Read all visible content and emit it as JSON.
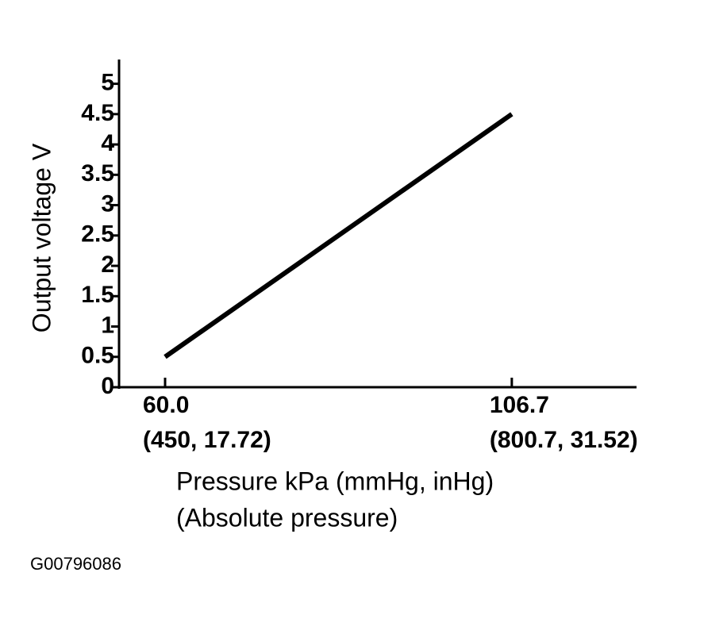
{
  "chart_data": {
    "type": "line",
    "ylabel": "Output voltage V",
    "xlabel": [
      "Pressure kPa (mmHg, inHg)",
      "(Absolute pressure)"
    ],
    "figure_id": "G00796086",
    "x": [
      60,
      106.7
    ],
    "series": [
      {
        "values": [
          0.5,
          4.5
        ],
        "color": "#000000"
      }
    ],
    "xlim": [
      53.8,
      123.5
    ],
    "ylim": [
      0,
      5.4
    ],
    "xticks": [
      {
        "value": 60,
        "label": "60.0"
      },
      106.7
    ],
    "xtick_sublabels": [
      "(450, 17.72)",
      "(800.7, 31.52)"
    ],
    "yticks": [
      0,
      0.5,
      1,
      1.5,
      2,
      2.5,
      3,
      3.5,
      4,
      4.5,
      5
    ],
    "grid": false
  }
}
